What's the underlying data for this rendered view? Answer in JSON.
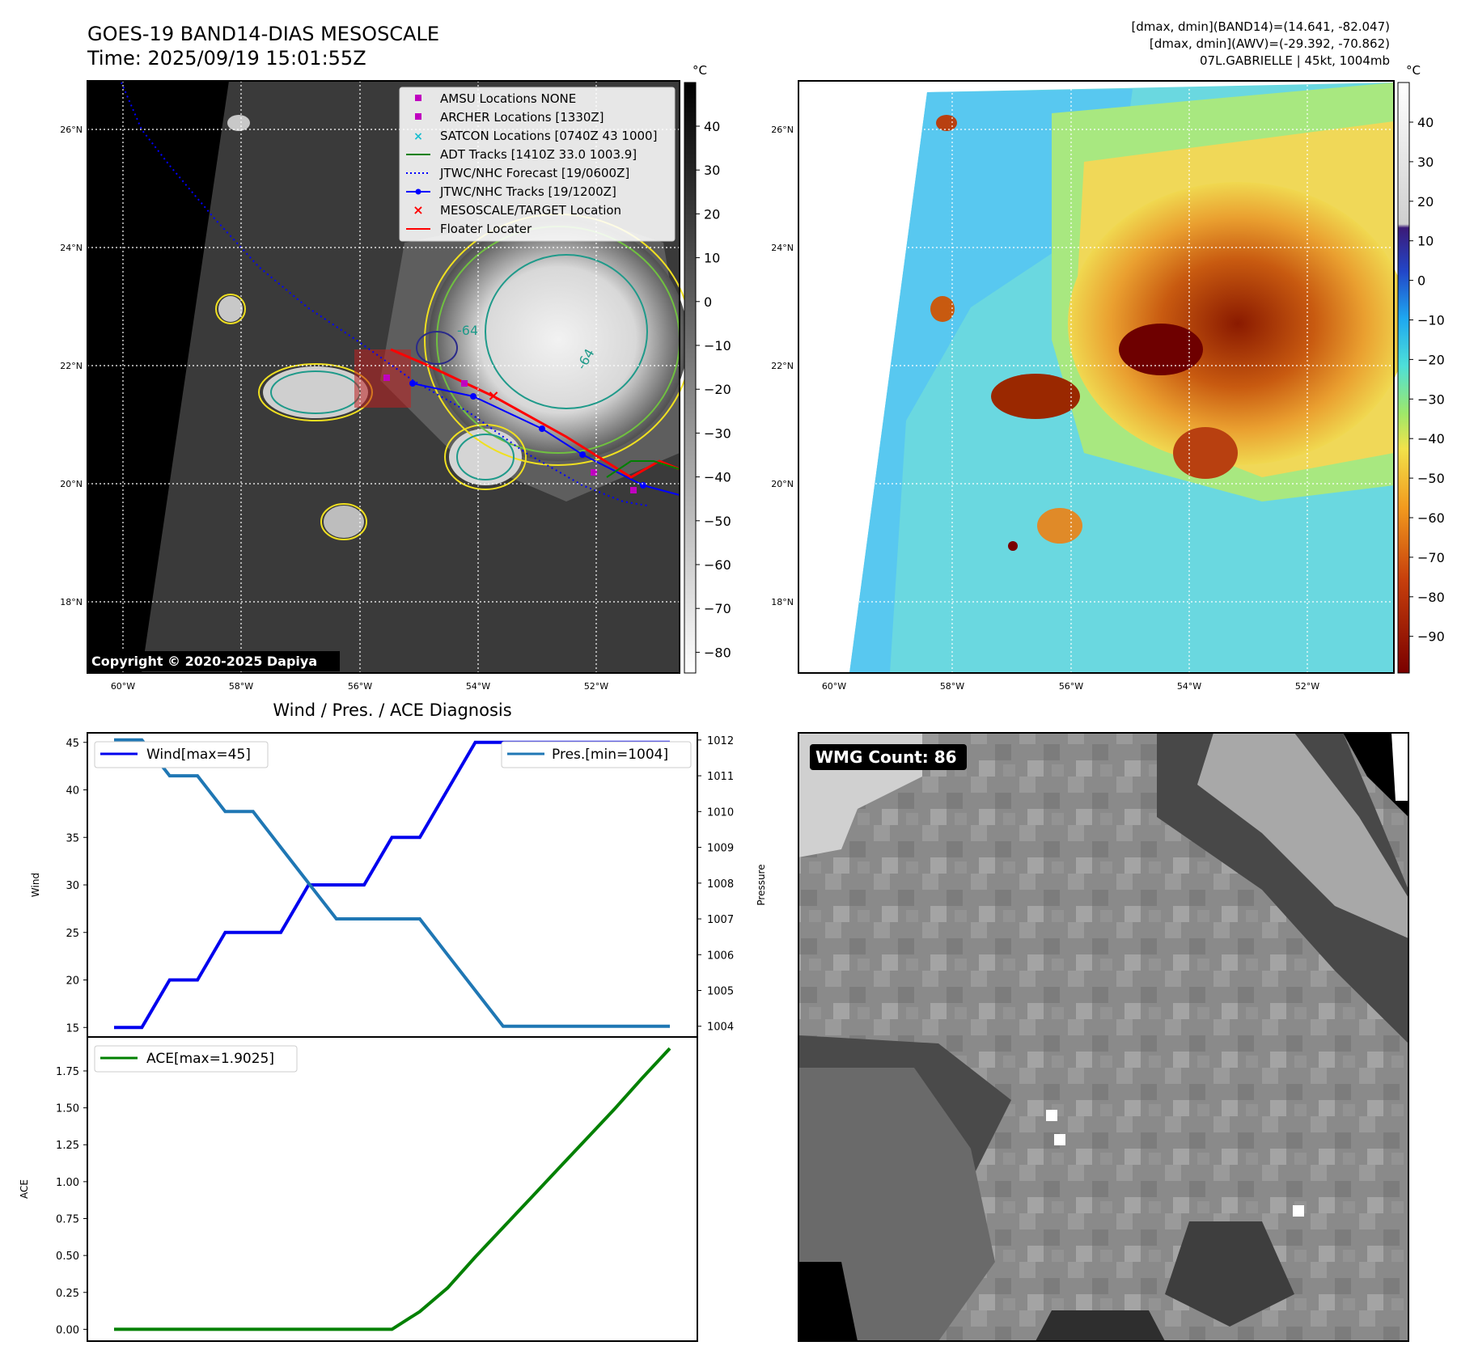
{
  "header": {
    "title_line1": "GOES-19 BAND14-DIAS MESOSCALE",
    "title_line2": "Time: 2025/09/19 15:01:55Z",
    "info_line1": "[dmax, dmin](BAND14)=(14.641, -82.047)",
    "info_line2": "[dmax, dmin](AWV)=(-29.392, -70.862)",
    "info_line3": "07L.GABRIELLE | 45kt, 1004mb"
  },
  "map_panel": {
    "lat_labels": [
      "26°N",
      "24°N",
      "22°N",
      "20°N",
      "18°N"
    ],
    "lon_labels": [
      "60°W",
      "58°W",
      "56°W",
      "54°W",
      "52°W"
    ],
    "copyright": "Copyright © 2020-2025 Dapiya",
    "contour_labels": [
      "-64",
      "-64"
    ],
    "legend": [
      {
        "label": "AMSU Locations NONE",
        "color": "#c000c0",
        "marker": "square"
      },
      {
        "label": "ARCHER Locations [1330Z]",
        "color": "#c000c0",
        "marker": "square"
      },
      {
        "label": "SATCON Locations [0740Z 43 1000]",
        "color": "#17becf",
        "marker": "x"
      },
      {
        "label": "ADT Tracks [1410Z 33.0 1003.9]",
        "color": "#008000",
        "marker": "line"
      },
      {
        "label": "JTWC/NHC Forecast [19/0600Z]",
        "color": "#0000ff",
        "marker": "dotted"
      },
      {
        "label": "JTWC/NHC Tracks [19/1200Z]",
        "color": "#0000ff",
        "marker": "line-dot"
      },
      {
        "label": "MESOSCALE/TARGET Location",
        "color": "#ff0000",
        "marker": "x"
      },
      {
        "label": "Floater Locater",
        "color": "#ff0000",
        "marker": "line"
      }
    ]
  },
  "colorbar_gray": {
    "unit": "°C",
    "ticks": [
      "40",
      "30",
      "20",
      "10",
      "0",
      "−10",
      "−20",
      "−30",
      "−40",
      "−50",
      "−60",
      "−70",
      "−80"
    ]
  },
  "colorbar_color": {
    "unit": "°C",
    "ticks": [
      "40",
      "30",
      "20",
      "10",
      "0",
      "−10",
      "−20",
      "−30",
      "−40",
      "−50",
      "−60",
      "−70",
      "−80",
      "−90"
    ]
  },
  "wmg_panel": {
    "label": "WMG Count: 86"
  },
  "chart_data": [
    {
      "type": "line",
      "title": "Wind / Pres. / ACE Diagnosis",
      "ylabel": "Wind",
      "ylabel_right": "Pressure",
      "ylim": [
        14,
        46
      ],
      "ylim_right": [
        1003.7,
        1012.2
      ],
      "y_ticks": [
        15,
        20,
        25,
        30,
        35,
        40,
        45
      ],
      "y_ticks_right": [
        1004,
        1005,
        1006,
        1007,
        1008,
        1009,
        1010,
        1011,
        1012
      ],
      "x": [
        0,
        1,
        2,
        3,
        4,
        5,
        6,
        7,
        8,
        9,
        10,
        11,
        12,
        13,
        14,
        15,
        16,
        17,
        18,
        19,
        20
      ],
      "series": [
        {
          "name": "Wind[max=45]",
          "axis": "left",
          "color": "#0000ee",
          "values": [
            15,
            15,
            20,
            20,
            25,
            25,
            25,
            30,
            30,
            30,
            35,
            35,
            40,
            45,
            45,
            45,
            45,
            45,
            45,
            45,
            45
          ]
        },
        {
          "name": "Pres.[min=1004]",
          "axis": "right",
          "color": "#1f77b4",
          "values": [
            1012,
            1012,
            1011,
            1011,
            1010,
            1010,
            1009,
            1008,
            1007,
            1007,
            1007,
            1007,
            1006,
            1005,
            1004,
            1004,
            1004,
            1004,
            1004,
            1004,
            1004
          ]
        }
      ]
    },
    {
      "type": "line",
      "title": "",
      "ylabel": "ACE",
      "ylim": [
        -0.08,
        1.98
      ],
      "y_ticks": [
        0.0,
        0.25,
        0.5,
        0.75,
        1.0,
        1.25,
        1.5,
        1.75
      ],
      "y_tick_labels": [
        "0.00",
        "0.25",
        "0.50",
        "0.75",
        "1.00",
        "1.25",
        "1.50",
        "1.75"
      ],
      "x": [
        0,
        1,
        2,
        3,
        4,
        5,
        6,
        7,
        8,
        9,
        10,
        11,
        12,
        13,
        14,
        15,
        16,
        17,
        18,
        19,
        20
      ],
      "series": [
        {
          "name": "ACE[max=1.9025]",
          "color": "#008000",
          "values": [
            0,
            0,
            0,
            0,
            0,
            0,
            0,
            0,
            0,
            0,
            0,
            0.12,
            0.28,
            0.49,
            0.69,
            0.89,
            1.09,
            1.29,
            1.49,
            1.7,
            1.9025
          ]
        }
      ]
    }
  ]
}
